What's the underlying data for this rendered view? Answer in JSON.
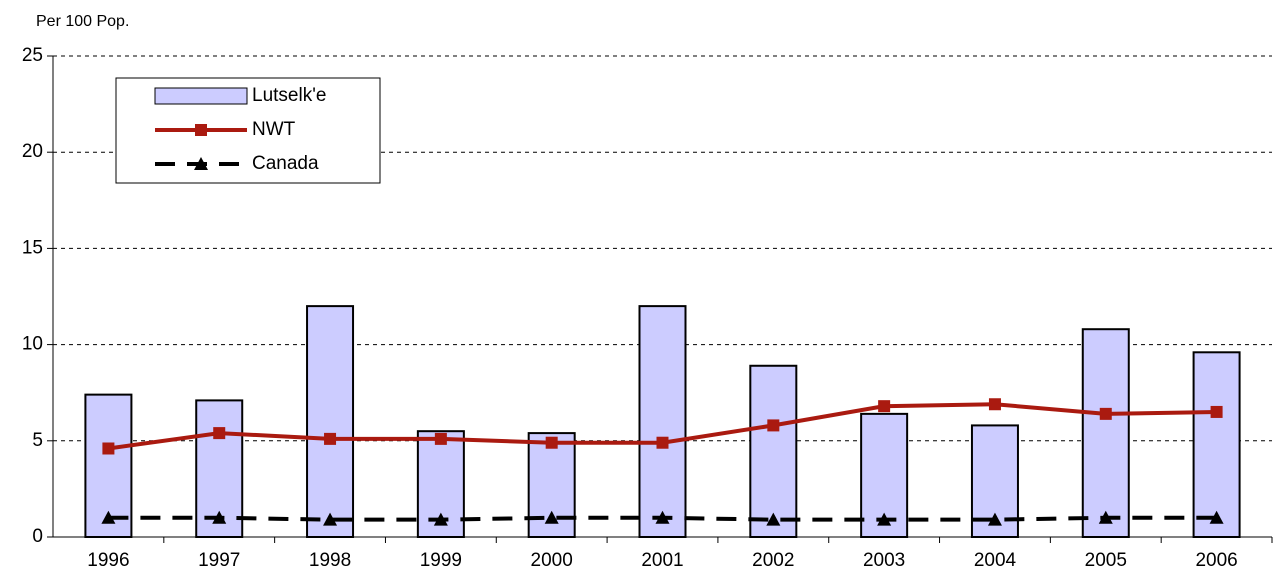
{
  "chart_data": {
    "type": "combo",
    "y_label": "Per 100 Pop.",
    "categories": [
      "1996",
      "1997",
      "1998",
      "1999",
      "2000",
      "2001",
      "2002",
      "2003",
      "2004",
      "2005",
      "2006"
    ],
    "series": [
      {
        "name": "Lutselk'e",
        "kind": "bar",
        "color": "#ccccff",
        "values": [
          7.4,
          7.1,
          12.0,
          5.5,
          5.4,
          12.0,
          8.9,
          6.4,
          5.8,
          10.8,
          9.6
        ]
      },
      {
        "name": "NWT",
        "kind": "line",
        "color": "#aa1a10",
        "marker": "square",
        "linestyle": "solid",
        "values": [
          4.6,
          5.4,
          5.1,
          5.1,
          4.9,
          4.9,
          5.8,
          6.8,
          6.9,
          6.4,
          6.5
        ]
      },
      {
        "name": "Canada",
        "kind": "line",
        "color": "#000000",
        "marker": "triangle",
        "linestyle": "dashed",
        "values": [
          1.0,
          1.0,
          0.9,
          0.9,
          1.0,
          1.0,
          0.9,
          0.9,
          0.9,
          1.0,
          1.0
        ]
      }
    ],
    "ylim": [
      0,
      25
    ],
    "yticks": [
      0,
      5,
      10,
      15,
      20,
      25
    ],
    "grid": true,
    "legend": "upper left"
  }
}
